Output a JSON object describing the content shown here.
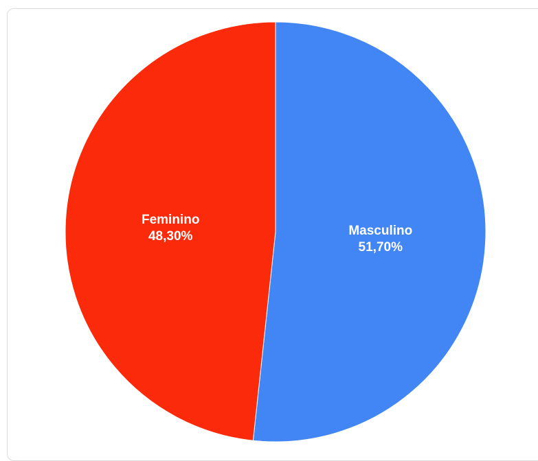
{
  "chart_data": {
    "type": "pie",
    "title": "",
    "slices": [
      {
        "label": "Masculino",
        "value": 51.7,
        "display": "51,70%",
        "color": "#4285f4"
      },
      {
        "label": "Feminino",
        "value": 48.3,
        "display": "48,30%",
        "color": "#fa2a0a"
      }
    ],
    "start_angle": "top (12 o'clock), clockwise",
    "legend": "none",
    "labels": "inside slices"
  }
}
